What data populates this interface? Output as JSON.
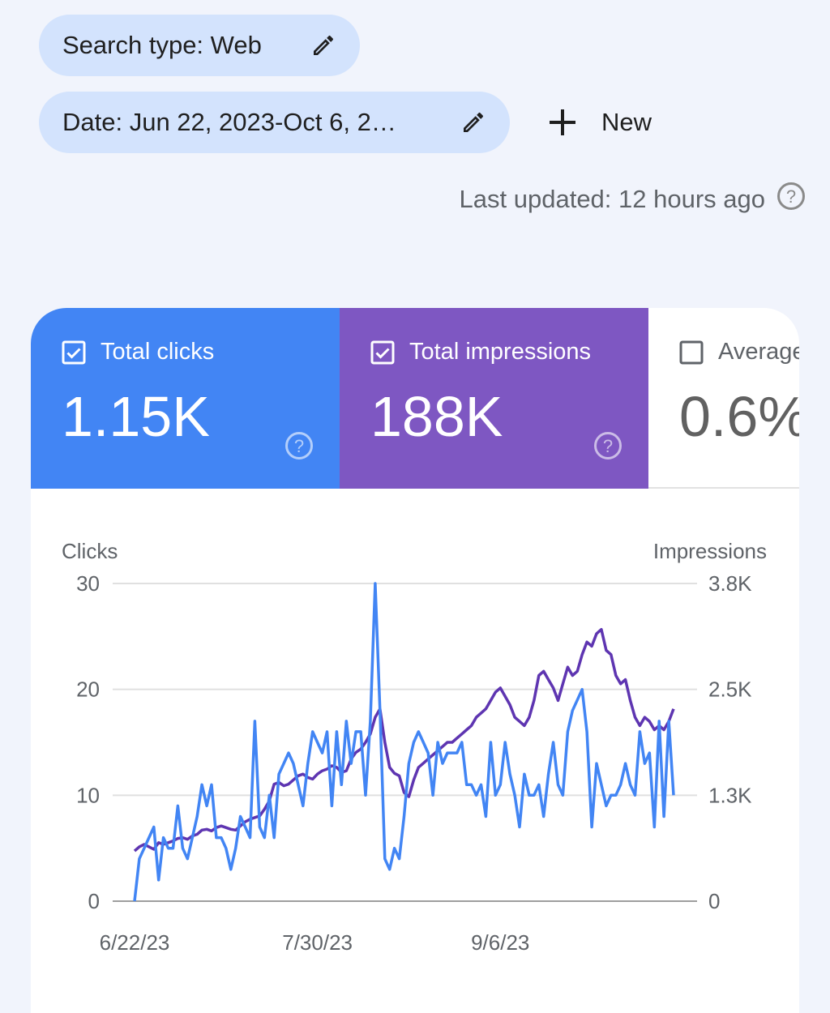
{
  "filters": {
    "search_type": "Search type: Web",
    "date": "Date: Jun 22, 2023-Oct 6, 2…",
    "new_label": "New"
  },
  "last_updated": "Last updated: 12 hours ago",
  "metrics": {
    "clicks": {
      "label": "Total clicks",
      "value": "1.15K",
      "checked": true,
      "color": "#4285f4"
    },
    "impressions": {
      "label": "Total impressions",
      "value": "188K",
      "checked": true,
      "color": "#7e57c2"
    },
    "ctr": {
      "label": "Average CTR",
      "value": "0.6%",
      "checked": false
    }
  },
  "chart_data": {
    "type": "line",
    "x_range": [
      "6/22/23",
      "10/6/23"
    ],
    "x_ticks": [
      "6/22/23",
      "7/30/23",
      "9/6/23"
    ],
    "y_left": {
      "label": "Clicks",
      "ticks": [
        "0",
        "10",
        "20",
        "30"
      ],
      "range": [
        0,
        30
      ]
    },
    "y_right": {
      "label": "Impressions",
      "ticks": [
        "0",
        "1.3K",
        "2.5K",
        "3.8K"
      ],
      "range": [
        0,
        3800
      ]
    },
    "grid": true,
    "series": [
      {
        "name": "Clicks",
        "axis": "left",
        "color": "#4285f4",
        "values": [
          0,
          4,
          5,
          6,
          7,
          2,
          6,
          5,
          5,
          9,
          5,
          4,
          6,
          8,
          11,
          9,
          11,
          6,
          6,
          5,
          3,
          5,
          8,
          7,
          6,
          17,
          7,
          6,
          10,
          6,
          12,
          13,
          14,
          13,
          11,
          9,
          13,
          16,
          15,
          14,
          16,
          9,
          16,
          11,
          17,
          13,
          16,
          16,
          10,
          17,
          30,
          18,
          4,
          3,
          5,
          4,
          8,
          13,
          15,
          16,
          15,
          14,
          10,
          15,
          13,
          14,
          14,
          14,
          15,
          11,
          11,
          10,
          11,
          8,
          15,
          10,
          11,
          15,
          12,
          10,
          7,
          12,
          10,
          10,
          11,
          8,
          12,
          15,
          11,
          10,
          16,
          18,
          19,
          20,
          16,
          7,
          13,
          11,
          9,
          10,
          10,
          11,
          13,
          11,
          10,
          16,
          13,
          14,
          7,
          17,
          8,
          17,
          10
        ],
        "values_approx": true
      },
      {
        "name": "Impressions",
        "axis": "right",
        "color": "#5e35b1",
        "values": [
          600,
          650,
          680,
          650,
          620,
          700,
          680,
          700,
          720,
          750,
          760,
          740,
          780,
          800,
          850,
          860,
          840,
          880,
          900,
          880,
          860,
          850,
          900,
          950,
          980,
          1000,
          1020,
          1100,
          1200,
          1400,
          1420,
          1380,
          1400,
          1450,
          1500,
          1520,
          1480,
          1460,
          1520,
          1560,
          1580,
          1620,
          1600,
          1540,
          1560,
          1700,
          1780,
          1820,
          1900,
          2000,
          2200,
          2300,
          1900,
          1600,
          1530,
          1500,
          1300,
          1250,
          1450,
          1600,
          1650,
          1700,
          1750,
          1800,
          1850,
          1900,
          1900,
          1950,
          2000,
          2050,
          2100,
          2200,
          2250,
          2300,
          2400,
          2500,
          2550,
          2450,
          2350,
          2200,
          2150,
          2100,
          2200,
          2400,
          2700,
          2750,
          2650,
          2550,
          2400,
          2600,
          2800,
          2700,
          2750,
          2950,
          3100,
          3050,
          3200,
          3250,
          3000,
          2950,
          2700,
          2600,
          2650,
          2400,
          2200,
          2100,
          2200,
          2150,
          2050,
          2100,
          2050,
          2150,
          2300
        ]
      }
    ]
  }
}
